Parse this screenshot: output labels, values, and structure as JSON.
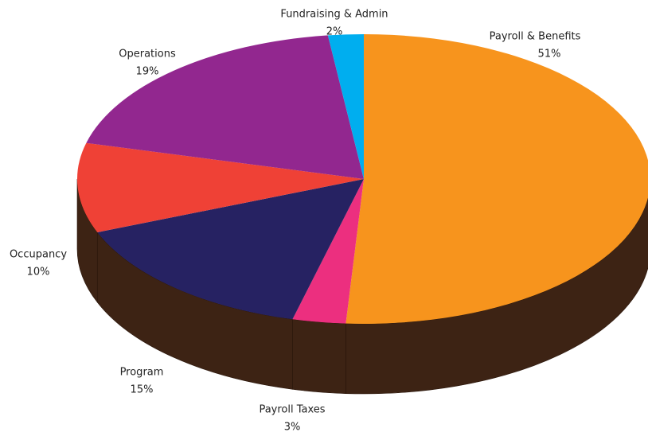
{
  "chart_data": {
    "type": "pie3d",
    "categories": [
      "Payroll & Benefits",
      "Payroll Taxes",
      "Program",
      "Occupancy",
      "Operations",
      "Fundraising & Admin"
    ],
    "values": [
      51,
      3,
      15,
      10,
      19,
      2
    ],
    "value_labels": [
      "51%",
      "3%",
      "15%",
      "10%",
      "19%",
      "2%"
    ],
    "colors": [
      "#F7941D",
      "#EC2F7F",
      "#262262",
      "#EF4136",
      "#92278F",
      "#00AEEF"
    ],
    "side_color": "#3D2314"
  }
}
